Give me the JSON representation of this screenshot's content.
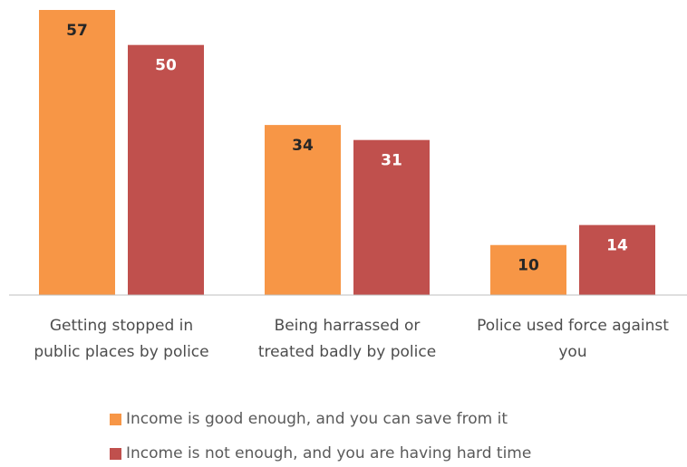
{
  "chart_data": {
    "type": "bar",
    "categories": [
      [
        "Getting stopped in",
        "public places by police"
      ],
      [
        "Being harrassed or",
        "treated badly by police"
      ],
      [
        "Police used force against",
        "you"
      ]
    ],
    "series": [
      {
        "name": "Income is good enough, and you can save from it",
        "values": [
          57,
          34,
          10
        ],
        "color": "#F79646",
        "label_color": "#262626"
      },
      {
        "name": "Income is not enough, and you are having hard time",
        "values": [
          50,
          31,
          14
        ],
        "color": "#C0504D",
        "label_color": "#ffffff"
      }
    ],
    "ylim": [
      0,
      57
    ],
    "legend": "bottom",
    "grid": false
  }
}
